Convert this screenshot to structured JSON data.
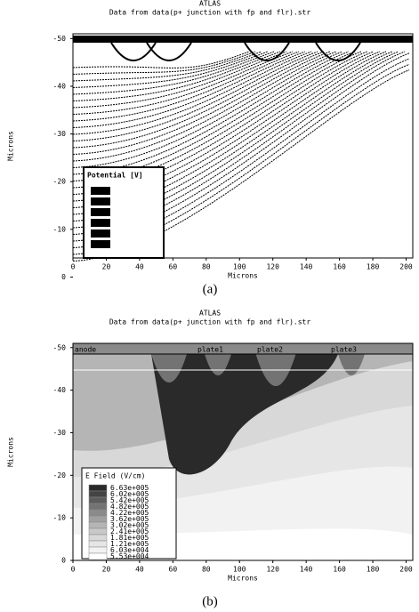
{
  "chart_data": [
    {
      "type": "contour",
      "program": "ATLAS",
      "title": "Data from data(p+ junction with fp and flr).str",
      "x_label": "Microns",
      "y_label": "Microns",
      "xlim": [
        0,
        204
      ],
      "ylim": [
        -4,
        -51
      ],
      "xticks": [
        0,
        20,
        40,
        60,
        80,
        100,
        120,
        140,
        160,
        180,
        200
      ],
      "yticks": [
        -50,
        -40,
        -30,
        -20,
        -10,
        0
      ],
      "legend_title": "Potential [V]",
      "caption": "(a)"
    },
    {
      "type": "filled-contour",
      "program": "ATLAS",
      "title": "Data from data(p+ junction with fp and flr).str",
      "x_label": "Microns",
      "y_label": "Microns",
      "xlim": [
        0,
        204
      ],
      "ylim": [
        0,
        -51
      ],
      "xticks": [
        0,
        20,
        40,
        60,
        80,
        100,
        120,
        140,
        160,
        180,
        200
      ],
      "yticks": [
        -50,
        -40,
        -30,
        -20,
        -10,
        0
      ],
      "electrodes": [
        "anode",
        "plate1",
        "plate2",
        "plate3"
      ],
      "legend_title": "E Field (V/cm)",
      "legend": [
        {
          "label": "6.63e+005",
          "color": "#2a2a2a"
        },
        {
          "label": "6.02e+005",
          "color": "#444444"
        },
        {
          "label": "5.42e+005",
          "color": "#5c5c5c"
        },
        {
          "label": "4.82e+005",
          "color": "#737373"
        },
        {
          "label": "4.22e+005",
          "color": "#8a8a8a"
        },
        {
          "label": "3.62e+005",
          "color": "#a0a0a0"
        },
        {
          "label": "3.02e+005",
          "color": "#b5b5b5"
        },
        {
          "label": "2.41e+005",
          "color": "#c8c8c8"
        },
        {
          "label": "1.81e+005",
          "color": "#d8d8d8"
        },
        {
          "label": "1.21e+005",
          "color": "#e6e6e6"
        },
        {
          "label": "6.03e+004",
          "color": "#f2f2f2"
        },
        {
          "label": "5.53e+004",
          "color": "#ffffff"
        }
      ],
      "caption": "(b)"
    }
  ]
}
